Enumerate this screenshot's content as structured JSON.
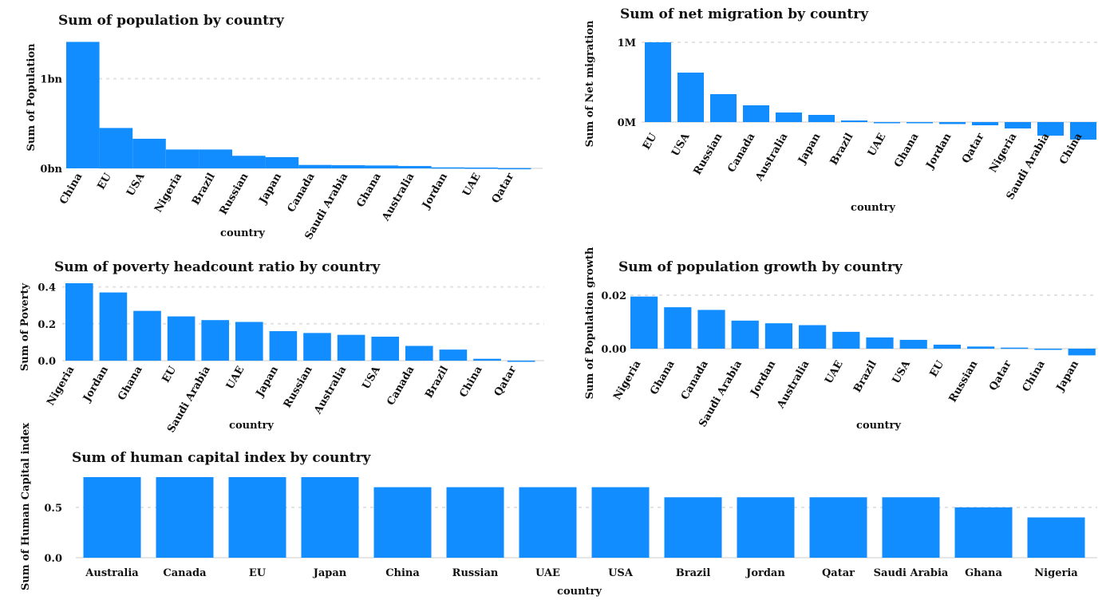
{
  "chart_data": [
    {
      "id": "population",
      "type": "bar",
      "title": "Sum of population by country",
      "xlabel": "country",
      "ylabel": "Sum of Population",
      "categories": [
        "China",
        "EU",
        "USA",
        "Nigeria",
        "Brazil",
        "Russian",
        "Japan",
        "Canada",
        "Saudi Arabia",
        "Ghana",
        "Australia",
        "Jordan",
        "UAE",
        "Qatar"
      ],
      "values": [
        1.41,
        0.45,
        0.33,
        0.21,
        0.21,
        0.14,
        0.125,
        0.038,
        0.035,
        0.032,
        0.026,
        0.011,
        0.009,
        0.003
      ],
      "unit": "billion",
      "yticks": [
        {
          "value": 0,
          "label": "0bn"
        },
        {
          "value": 1,
          "label": "1bn"
        }
      ],
      "ylim": [
        0,
        1.45
      ],
      "grid": true,
      "color": "#118DFF"
    },
    {
      "id": "migration",
      "type": "bar",
      "title": "Sum of net migration by country",
      "xlabel": "country",
      "ylabel": "Sum of Net migration",
      "categories": [
        "EU",
        "USA",
        "Russian",
        "Canada",
        "Australia",
        "Japan",
        "Brazil",
        "UAE",
        "Ghana",
        "Jordan",
        "Qatar",
        "Nigeria",
        "Saudi Arabia",
        "China"
      ],
      "values": [
        1.0,
        0.62,
        0.35,
        0.21,
        0.12,
        0.09,
        0.02,
        -0.01,
        -0.015,
        -0.025,
        -0.04,
        -0.08,
        -0.17,
        -0.22
      ],
      "unit": "million",
      "yticks": [
        {
          "value": 0,
          "label": "0M"
        },
        {
          "value": 1,
          "label": "1M"
        }
      ],
      "ylim": [
        -0.25,
        1.05
      ],
      "grid": true,
      "color": "#118DFF"
    },
    {
      "id": "poverty",
      "type": "bar",
      "title": "Sum of poverty headcount ratio  by country",
      "xlabel": "country",
      "ylabel": "Sum of Poverty",
      "categories": [
        "Nigeria",
        "Jordan",
        "Ghana",
        "EU",
        "Saudi Arabia",
        "UAE",
        "Japan",
        "Russian",
        "Australia",
        "USA",
        "Canada",
        "Brazil",
        "China",
        "Qatar"
      ],
      "values": [
        0.42,
        0.37,
        0.27,
        0.24,
        0.22,
        0.21,
        0.16,
        0.15,
        0.14,
        0.13,
        0.08,
        0.06,
        0.01,
        0.0
      ],
      "yticks": [
        {
          "value": 0.0,
          "label": "0.0"
        },
        {
          "value": 0.2,
          "label": "0.2"
        },
        {
          "value": 0.4,
          "label": "0.4"
        }
      ],
      "ylim": [
        -0.03,
        0.42
      ],
      "grid": true,
      "color": "#118DFF"
    },
    {
      "id": "growth",
      "type": "bar",
      "title": "Sum of population growth by country",
      "xlabel": "country",
      "ylabel": "Sum of Population growth",
      "categories": [
        "Nigeria",
        "Ghana",
        "Canada",
        "Saudi Arabia",
        "Jordan",
        "Australia",
        "UAE",
        "Brazil",
        "USA",
        "EU",
        "Russian",
        "Qatar",
        "China",
        "Japan"
      ],
      "values": [
        0.0195,
        0.0155,
        0.0145,
        0.0105,
        0.0095,
        0.0088,
        0.0063,
        0.0042,
        0.0033,
        0.0015,
        0.0008,
        0.0004,
        0.0,
        -0.0025
      ],
      "yticks": [
        {
          "value": 0.0,
          "label": "0.00"
        },
        {
          "value": 0.02,
          "label": "0.02"
        }
      ],
      "ylim": [
        -0.003,
        0.02
      ],
      "grid": true,
      "color": "#118DFF"
    },
    {
      "id": "hci",
      "type": "bar",
      "title": "Sum of human capital index by country",
      "xlabel": "country",
      "ylabel": "Sum of Human Capital index",
      "categories": [
        "Australia",
        "Canada",
        "EU",
        "Japan",
        "China",
        "Russian",
        "UAE",
        "USA",
        "Brazil",
        "Jordan",
        "Qatar",
        "Saudi Arabia",
        "Ghana",
        "Nigeria"
      ],
      "values": [
        0.8,
        0.8,
        0.8,
        0.8,
        0.7,
        0.7,
        0.7,
        0.7,
        0.6,
        0.6,
        0.6,
        0.6,
        0.5,
        0.4
      ],
      "yticks": [
        {
          "value": 0.0,
          "label": "0.0"
        },
        {
          "value": 0.5,
          "label": "0.5"
        }
      ],
      "ylim": [
        0,
        0.8
      ],
      "grid": true,
      "color": "#118DFF"
    }
  ]
}
